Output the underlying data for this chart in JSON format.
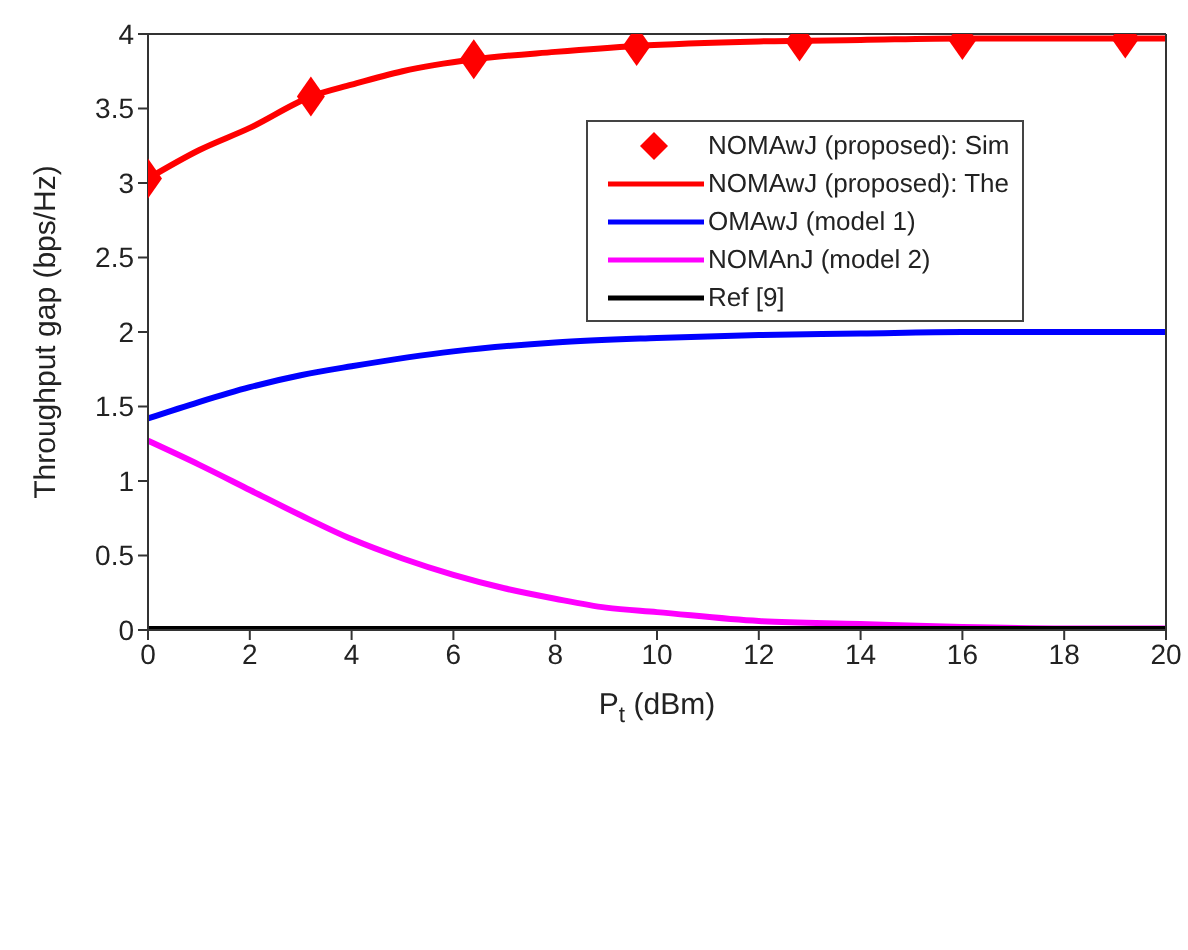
{
  "chart_data": {
    "type": "line",
    "xlabel": "P$_{t}$ (dBm)",
    "ylabel": "Throughput gap (bps/Hz)",
    "xlim": [
      0,
      20
    ],
    "ylim": [
      0,
      4
    ],
    "xticks": [
      0,
      2,
      4,
      6,
      8,
      10,
      12,
      14,
      16,
      18,
      20
    ],
    "yticks": [
      0,
      0.5,
      1,
      1.5,
      2,
      2.5,
      3,
      3.5,
      4
    ],
    "legend": "top right",
    "series": [
      {
        "name": "NOMAwJ (proposed): Sim",
        "type": "scatter",
        "marker": "diamond",
        "color": "#ff0000",
        "x": [
          0,
          3.2,
          6.4,
          9.6,
          12.8,
          16,
          19.2
        ],
        "values": [
          3.03,
          3.58,
          3.83,
          3.92,
          3.95,
          3.96,
          3.97
        ]
      },
      {
        "name": "NOMAwJ (proposed): The",
        "marker": "none",
        "color": "#ff0000",
        "x": [
          0,
          1,
          2,
          3.2,
          4,
          5,
          6.4,
          8,
          9.6,
          12,
          14,
          16,
          18,
          20
        ],
        "values": [
          3.03,
          3.22,
          3.37,
          3.58,
          3.66,
          3.75,
          3.83,
          3.88,
          3.92,
          3.95,
          3.96,
          3.97,
          3.97,
          3.97
        ]
      },
      {
        "name": "OMAwJ (model 1)",
        "marker": "none",
        "color": "#0000ff",
        "x": [
          0,
          1,
          2,
          3,
          4,
          6,
          8,
          10,
          12,
          14,
          16,
          18,
          20
        ],
        "values": [
          1.42,
          1.53,
          1.63,
          1.71,
          1.77,
          1.87,
          1.93,
          1.96,
          1.98,
          1.99,
          2.0,
          2.0,
          2.0
        ]
      },
      {
        "name": "NOMAnJ (model 2)",
        "marker": "none",
        "color": "#ff00ff",
        "x": [
          0,
          1,
          2,
          3,
          4,
          5,
          6,
          7,
          8,
          9,
          10,
          12,
          14,
          16,
          18,
          20
        ],
        "values": [
          1.27,
          1.11,
          0.94,
          0.77,
          0.61,
          0.48,
          0.37,
          0.28,
          0.21,
          0.15,
          0.12,
          0.06,
          0.04,
          0.02,
          0.01,
          0.01
        ]
      },
      {
        "name": "Ref [9]",
        "marker": "none",
        "color": "#000000",
        "x": [
          0,
          20
        ],
        "values": [
          0,
          0
        ]
      }
    ]
  }
}
